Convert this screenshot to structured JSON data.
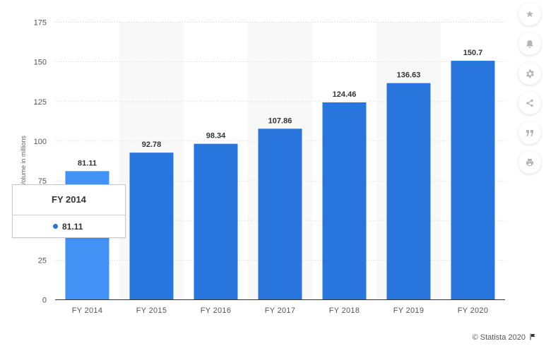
{
  "chart_data": {
    "type": "bar",
    "categories": [
      "FY 2014",
      "FY 2015",
      "FY 2016",
      "FY 2017",
      "FY 2018",
      "FY 2019",
      "FY 2020"
    ],
    "values": [
      81.11,
      92.78,
      98.34,
      107.86,
      124.46,
      136.63,
      150.7
    ],
    "value_labels": [
      "81.11",
      "92.78",
      "98.34",
      "107.86",
      "124.46",
      "136.63",
      "150.7"
    ],
    "ylabel": "Volume in millions",
    "ylim": [
      0,
      175
    ],
    "yticks": [
      "0",
      "25",
      "50",
      "75",
      "100",
      "125",
      "150",
      "175"
    ],
    "grid": true,
    "bar_color": "#2876dd",
    "highlight_color": "#4291f5",
    "highlighted_index": 0
  },
  "tooltip": {
    "title": "FY 2014",
    "value": "81.11",
    "dot_color": "#2876dd"
  },
  "toolbar": {
    "icons": [
      "star-icon",
      "bell-icon",
      "gear-icon",
      "share-icon",
      "quote-icon",
      "print-icon"
    ]
  },
  "footer": {
    "credit": "© Statista 2020",
    "icon": "flag-icon"
  }
}
